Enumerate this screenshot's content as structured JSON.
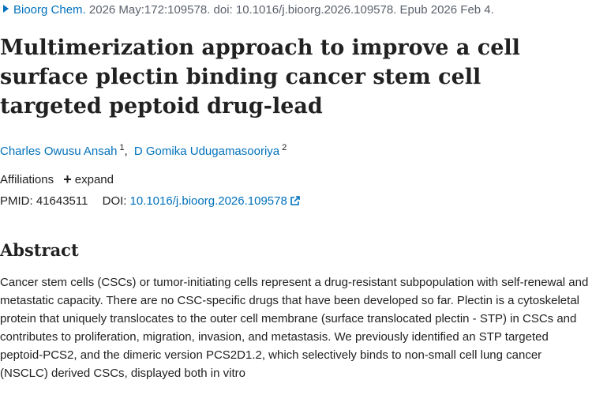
{
  "citation": {
    "journal": "Bioorg Chem.",
    "details": "2026 May:172:109578. doi: 10.1016/j.bioorg.2026.109578. Epub 2026 Feb 4."
  },
  "title": "Multimerization approach to improve a cell surface plectin binding cancer stem cell targeted peptoid drug-lead",
  "authors": [
    {
      "name": "Charles Owusu Ansah",
      "aff": "1"
    },
    {
      "name": "D Gomika Udugamasooriya",
      "aff": "2"
    }
  ],
  "author_separator": ",",
  "affiliations": {
    "label": "Affiliations",
    "expand_label": "expand"
  },
  "ids": {
    "pmid_label": "PMID:",
    "pmid": "41643511",
    "doi_label": "DOI:",
    "doi": "10.1016/j.bioorg.2026.109578"
  },
  "abstract": {
    "heading": "Abstract",
    "text": "Cancer stem cells (CSCs) or tumor-initiating cells represent a drug-resistant subpopulation with self-renewal and metastatic capacity. There are no CSC-specific drugs that have been developed so far. Plectin is a cytoskeletal protein that uniquely translocates to the outer cell membrane (surface translocated plectin - STP) in CSCs and contributes to proliferation, migration, invasion, and metastasis. We previously identified an STP targeted peptoid-PCS2, and the dimeric version PCS2D1.2, which selectively binds to non-small cell lung cancer (NSCLC) derived CSCs, displayed both in vitro"
  },
  "colors": {
    "link": "#0071bc",
    "text": "#212121",
    "muted": "#5b616b"
  },
  "icons": {
    "citation_caret": "caret-right-icon",
    "expand": "plus-icon",
    "doi_external": "external-link-icon"
  }
}
